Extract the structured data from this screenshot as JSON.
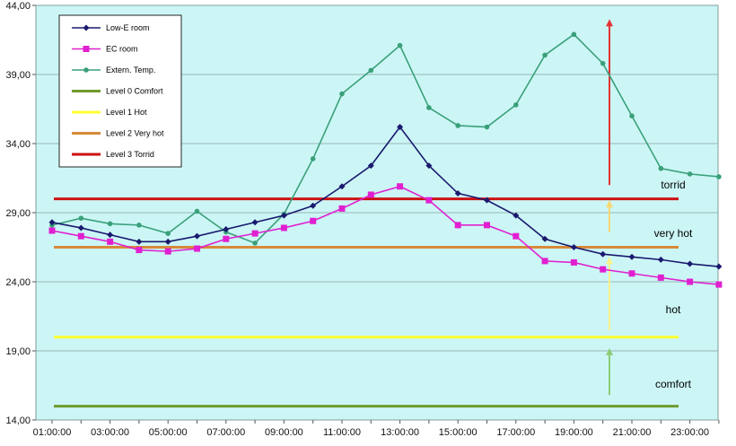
{
  "colors": {
    "plot_bg": "#ccf6f6",
    "grid": "#9ab4b4",
    "low_e": "#1a1a6e",
    "ec": "#e020d0",
    "ext": "#3aa07a",
    "level0": "#6f9a2c",
    "level1": "#ffff33",
    "level2": "#d7893a",
    "level3": "#cc1111",
    "arrow_green": "#8ccc77",
    "arrow_yellow": "#f6f28a",
    "arrow_orange": "#f7d772",
    "arrow_red": "#e33333"
  },
  "chart_data": {
    "type": "line",
    "title": "",
    "xlabel": "",
    "ylabel": "",
    "ylim": [
      14,
      44
    ],
    "yticks": [
      "14,00",
      "19,00",
      "24,00",
      "29,00",
      "34,00",
      "39,00",
      "44,00"
    ],
    "x": [
      "01:00:00",
      "02:00:00",
      "03:00:00",
      "04:00:00",
      "05:00:00",
      "06:00:00",
      "07:00:00",
      "08:00:00",
      "09:00:00",
      "10:00:00",
      "11:00:00",
      "12:00:00",
      "13:00:00",
      "14:00:00",
      "15:00:00",
      "16:00:00",
      "17:00:00",
      "18:00:00",
      "19:00:00",
      "20:00:00",
      "21:00:00",
      "22:00:00",
      "23:00:00",
      "24:00:00"
    ],
    "xticks": [
      "01:00:00",
      "03:00:00",
      "05:00:00",
      "07:00:00",
      "09:00:00",
      "11:00:00",
      "13:00:00",
      "15:00:00",
      "17:00:00",
      "19:00:00",
      "21:00:00",
      "23:00:00"
    ],
    "grid": true,
    "legend_position": "top-left",
    "series": [
      {
        "name": "Low-E room",
        "color_key": "low_e",
        "marker": "diamond",
        "values": [
          28.3,
          27.9,
          27.4,
          26.9,
          26.9,
          27.3,
          27.8,
          28.3,
          28.8,
          29.5,
          30.9,
          32.4,
          35.2,
          32.4,
          30.4,
          29.9,
          28.8,
          27.1,
          26.5,
          26.0,
          25.8,
          25.6,
          25.3,
          25.1
        ]
      },
      {
        "name": "EC room",
        "color_key": "ec",
        "marker": "square",
        "values": [
          27.7,
          27.3,
          26.9,
          26.3,
          26.2,
          26.4,
          27.1,
          27.5,
          27.9,
          28.4,
          29.3,
          30.3,
          30.9,
          29.9,
          28.1,
          28.1,
          27.3,
          25.5,
          25.4,
          24.9,
          24.6,
          24.3,
          24.0,
          23.8
        ]
      },
      {
        "name": "Extern. Temp.",
        "color_key": "ext",
        "marker": "circle",
        "values": [
          28.1,
          28.6,
          28.2,
          28.1,
          27.5,
          29.1,
          27.6,
          26.8,
          28.9,
          32.9,
          37.6,
          39.3,
          41.1,
          36.6,
          35.3,
          35.2,
          36.8,
          40.4,
          41.9,
          39.8,
          36.0,
          32.2,
          31.8,
          31.6
        ]
      }
    ],
    "levels": [
      {
        "name": "Level 0 Comfort",
        "color_key": "level0",
        "value": 15.0
      },
      {
        "name": "Level 1 Hot",
        "color_key": "level1",
        "value": 20.0
      },
      {
        "name": "Level 2 Very hot",
        "color_key": "level2",
        "value": 26.5
      },
      {
        "name": "Level 3 Torrid",
        "color_key": "level3",
        "value": 30.0
      }
    ],
    "zone_labels": [
      {
        "text": "torrid",
        "value": 31.0
      },
      {
        "text": "very hot",
        "value": 27.5
      },
      {
        "text": "hot",
        "value": 22.0
      },
      {
        "text": "comfort",
        "value": 16.6
      }
    ],
    "arrows": [
      {
        "color_key": "arrow_green",
        "from": 15.8,
        "to": 19.2
      },
      {
        "color_key": "arrow_yellow",
        "from": 20.5,
        "to": 25.8
      },
      {
        "color_key": "arrow_orange",
        "from": 27.6,
        "to": 29.9
      },
      {
        "color_key": "arrow_red",
        "from": 31.0,
        "to": 43.0
      }
    ]
  }
}
